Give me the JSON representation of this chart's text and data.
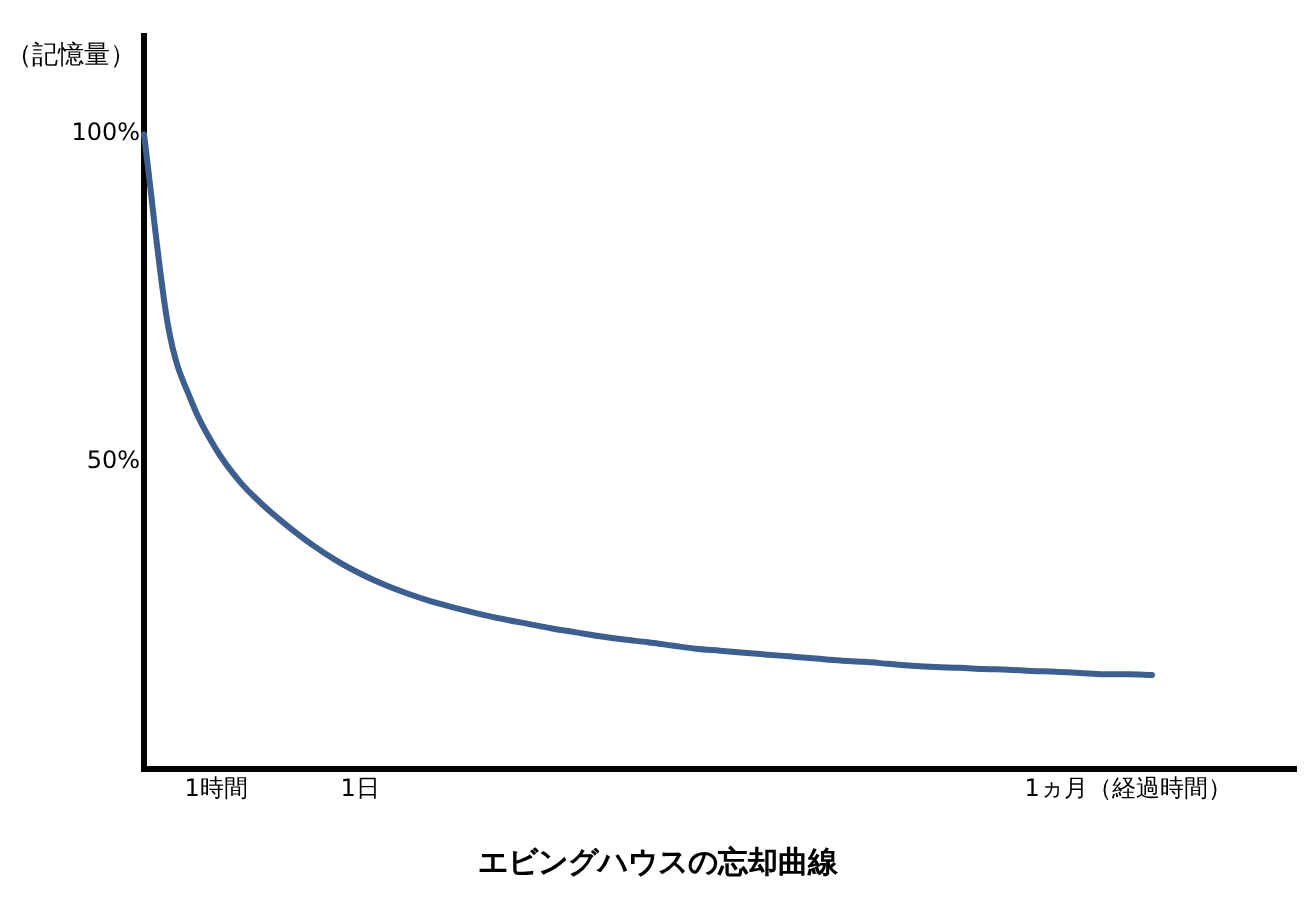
{
  "chart_data": {
    "type": "line",
    "title": "エビングハウスの忘却曲線",
    "ylabel": "（記憶量）",
    "categories": [
      null,
      null,
      null,
      "1時間",
      null,
      null,
      null,
      null,
      null,
      "1日",
      null,
      null,
      null,
      null,
      null,
      null,
      null,
      null,
      null,
      null,
      null,
      null,
      null,
      null,
      null,
      null,
      null,
      null,
      null,
      null,
      null,
      null,
      null,
      null,
      null,
      null,
      null,
      null,
      null,
      null,
      null,
      "1ヵ月（経過時間）",
      null,
      null,
      null,
      null,
      null,
      null,
      null
    ],
    "series": [
      {
        "color": "#3d5f8f",
        "values": [
          100,
          70.8,
          59.0,
          51.9,
          46.9,
          43.2,
          40.1,
          37.3,
          34.9,
          32.9,
          31.2,
          29.8,
          28.6,
          27.6,
          26.7,
          25.9,
          25.2,
          24.5,
          23.9,
          23.3,
          22.8,
          22.4,
          21.9,
          21.4,
          21.1,
          20.8,
          20.5,
          20.2,
          19.9,
          19.6,
          19.4,
          19.1,
          18.8,
          18.6,
          18.5,
          18.3,
          18.2,
          18.0,
          17.9,
          17.7,
          17.5,
          17.5,
          17.4,
          null,
          null,
          null,
          null,
          null,
          null
        ]
      }
    ],
    "ylim": [
      3,
      115
    ],
    "yticks": [
      {
        "value": 100,
        "label": "100%"
      },
      {
        "value": 50,
        "label": "50%"
      }
    ],
    "grid": false,
    "legend": false,
    "marker": "none",
    "line_style": "solid"
  }
}
